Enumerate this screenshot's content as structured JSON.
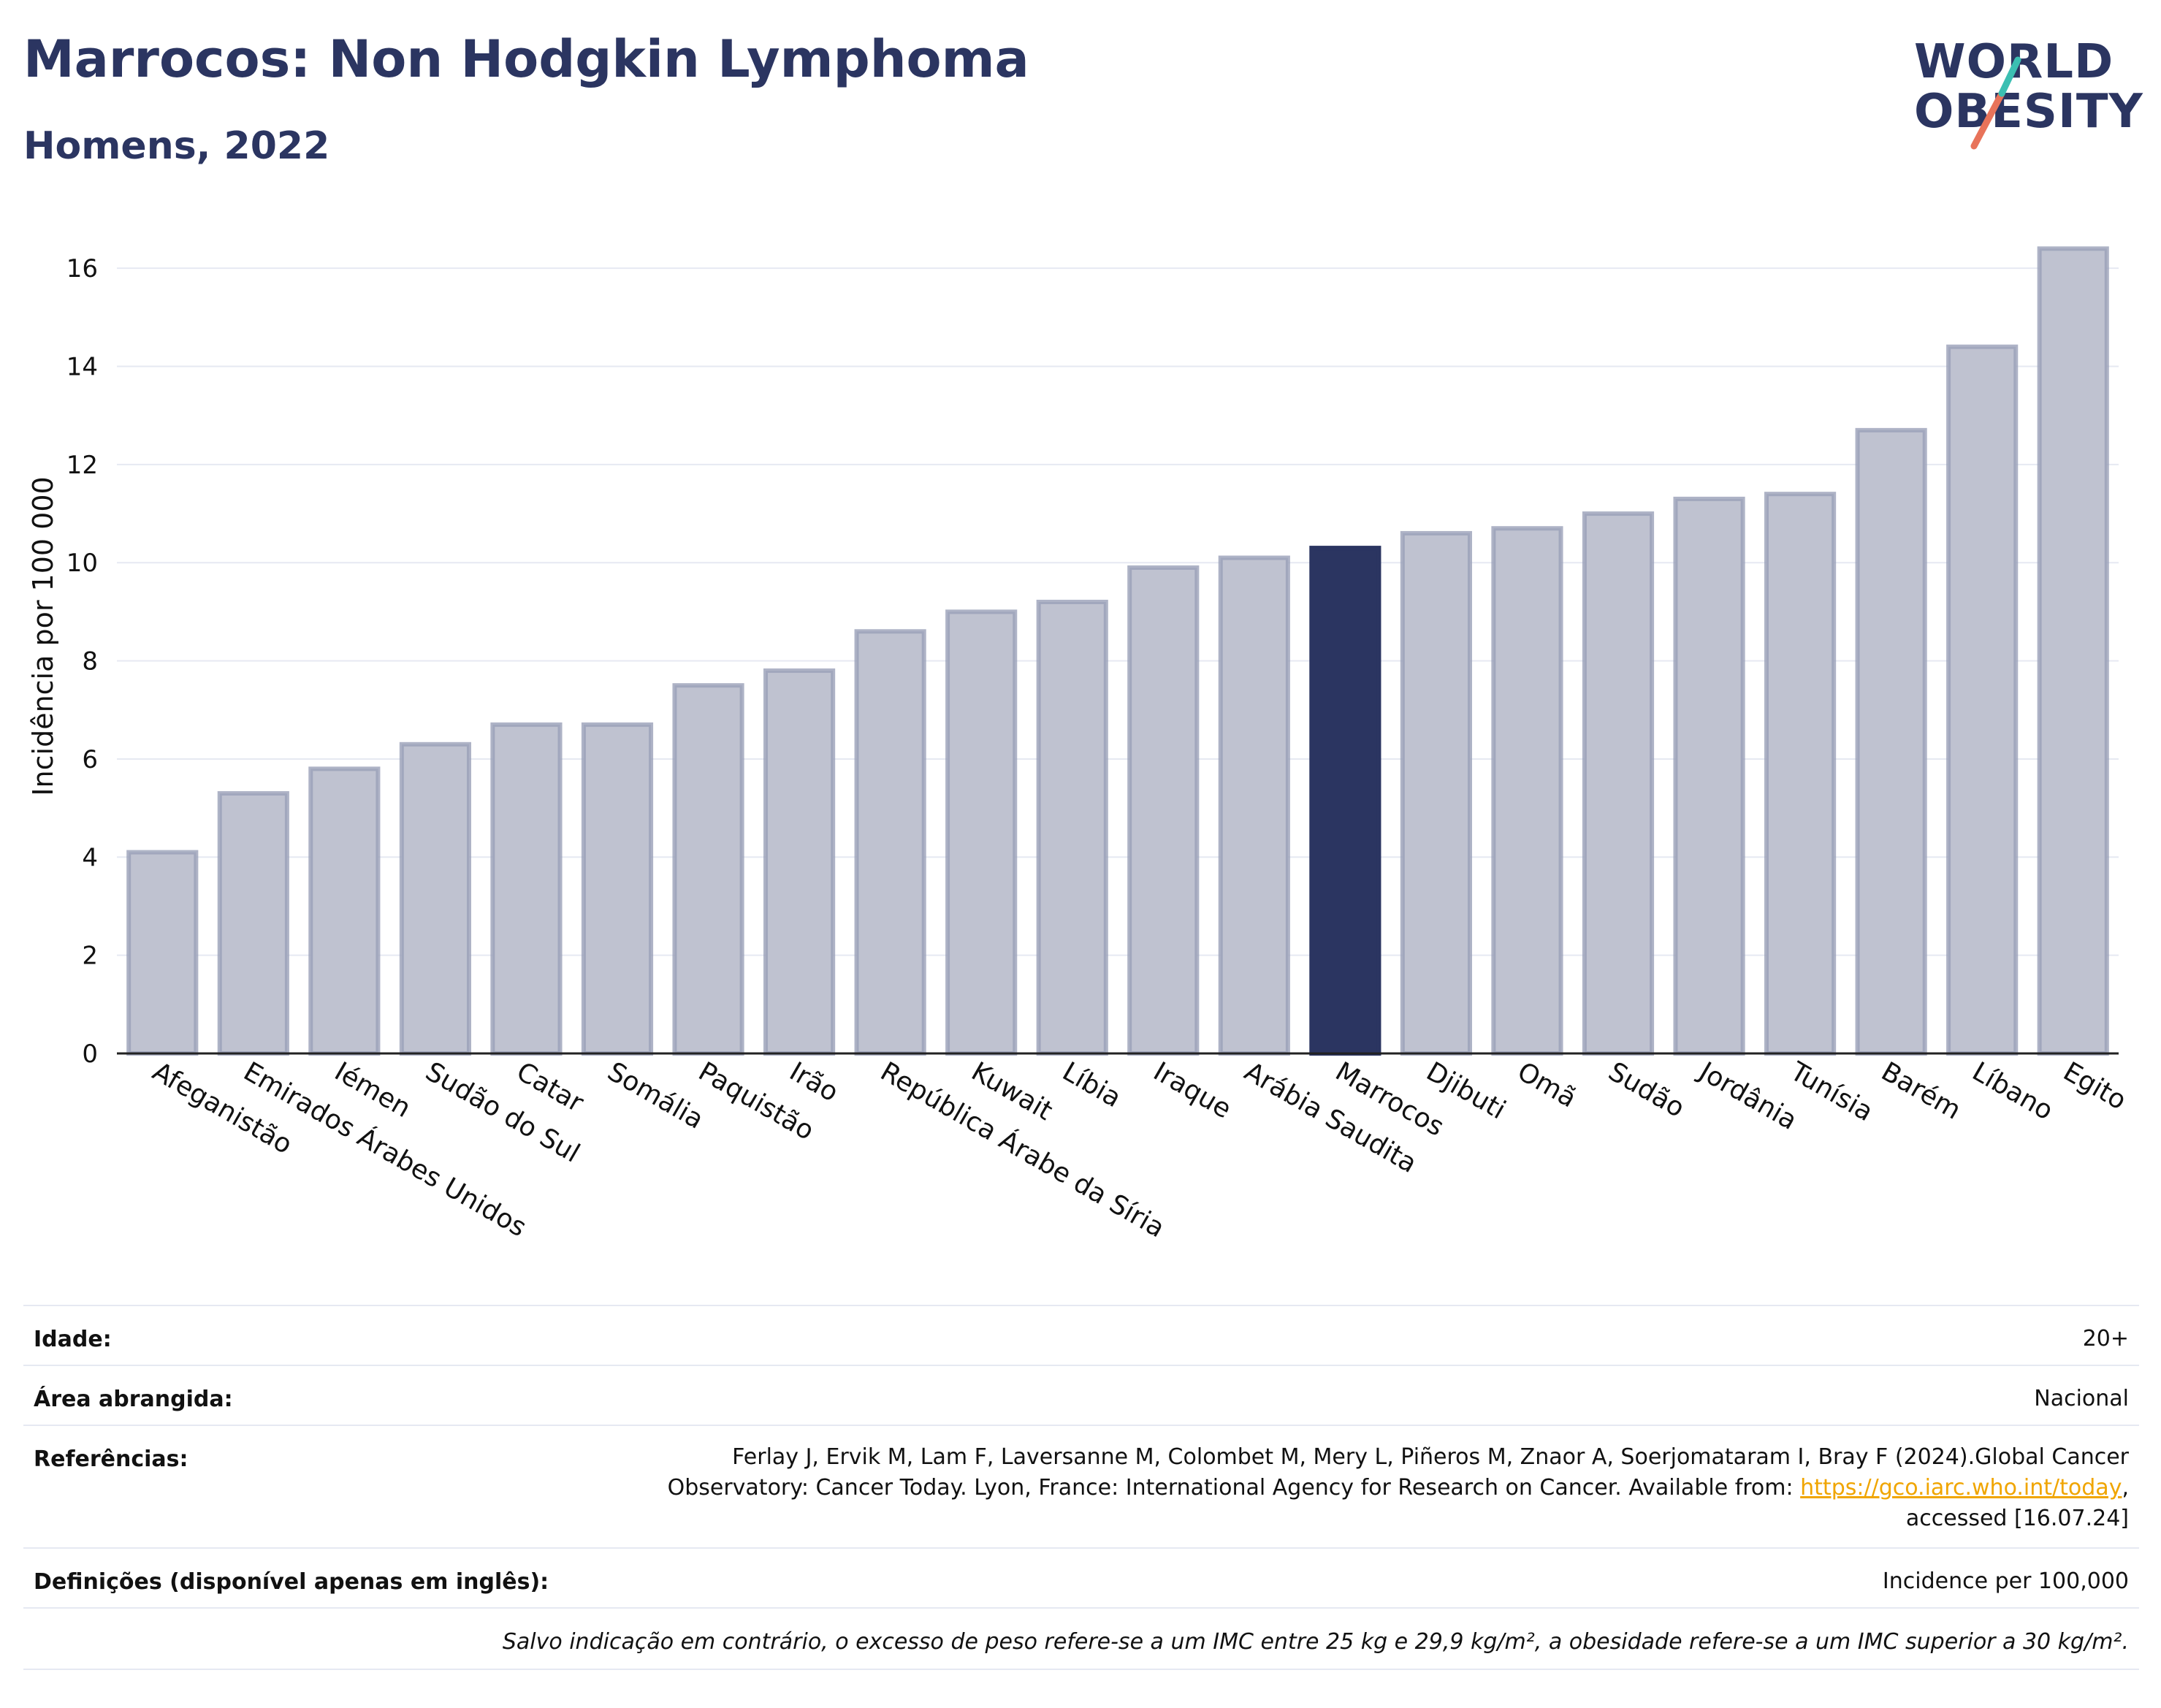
{
  "header": {
    "title": "Marrocos: Non Hodgkin Lymphoma",
    "subtitle": "Homens, 2022"
  },
  "logo": {
    "line1": "WORLD",
    "line2": "OBESITY",
    "icon": "world-obesity-logo"
  },
  "colors": {
    "bar": "#bfc2d0",
    "bar_border": "#9aa0b8",
    "highlight": "#2b3561",
    "title": "#2b3561",
    "grid": "#e6e9f2"
  },
  "chart_data": {
    "type": "bar",
    "ylabel": "Incidência por 100 000",
    "ylim": [
      0,
      17
    ],
    "yticks": [
      0,
      2,
      4,
      6,
      8,
      10,
      12,
      14,
      16
    ],
    "grid": true,
    "highlight": "Marrocos",
    "categories": [
      "Afeganistão",
      "Emirados Árabes Unidos",
      "Iémen",
      "Sudão do Sul",
      "Catar",
      "Somália",
      "Paquistão",
      "Irão",
      "República Árabe da Síria",
      "Kuwait",
      "Líbia",
      "Iraque",
      "Arábia Saudita",
      "Marrocos",
      "Djibuti",
      "Omã",
      "Sudão",
      "Jordânia",
      "Tunísia",
      "Barém",
      "Líbano",
      "Egito"
    ],
    "values": [
      4.1,
      5.3,
      5.8,
      6.3,
      6.7,
      6.7,
      7.5,
      7.8,
      8.6,
      9.0,
      9.2,
      9.9,
      10.1,
      10.3,
      10.6,
      10.7,
      11.0,
      11.3,
      11.4,
      12.7,
      14.4,
      16.4
    ]
  },
  "info": {
    "age_label": "Idade:",
    "age_value": "20+",
    "area_label": "Área abrangida:",
    "area_value": "Nacional",
    "ref_label": "Referências:",
    "ref_line1": "Ferlay J, Ervik M, Lam F, Laversanne M, Colombet M, Mery L, Piñeros M, Znaor A, Soerjomataram I, Bray F (2024).Global Cancer",
    "ref_line2_pre": "Observatory: Cancer Today. Lyon, France: International Agency for Research on Cancer. Available from: ",
    "ref_link": "https://gco.iarc.who.int/today",
    "ref_line2_post": ",",
    "ref_line3": "accessed [16.07.24]",
    "def_label": "Definições (disponível apenas em inglês):",
    "def_value": "Incidence per 100,000",
    "note": "Salvo indicação em contrário, o excesso de peso refere-se a um IMC entre 25 kg e 29,9 kg/m², a obesidade refere-se a um IMC superior a 30 kg/m²."
  }
}
